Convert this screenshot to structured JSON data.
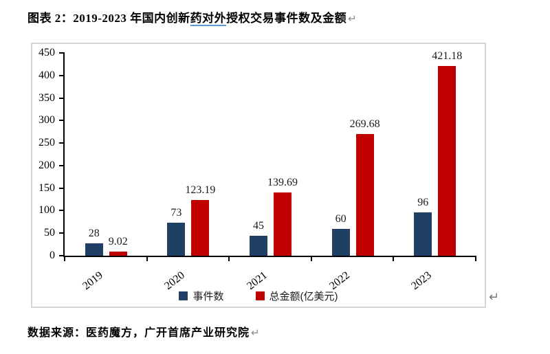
{
  "document": {
    "title": {
      "prefix": "图表 2：2019-2023 年国内创新",
      "underlined": "药对外",
      "suffix": "授权交易事件数及金额"
    },
    "source_note": "数据来源：医药魔方，广开首席产业研究院",
    "paragraph_mark": "↵"
  },
  "chart_data": {
    "type": "bar",
    "title": "2019-2023 年国内创新药对外授权交易事件数及金额",
    "categories": [
      "2019",
      "2020",
      "2021",
      "2022",
      "2023"
    ],
    "series": [
      {
        "name": "事件数",
        "color": "#1F3F64",
        "values": [
          28,
          73,
          45,
          60,
          96
        ],
        "labels": [
          "28",
          "73",
          "45",
          "60",
          "96"
        ]
      },
      {
        "name": "总金额(亿美元)",
        "color": "#C00000",
        "values": [
          9.02,
          123.19,
          139.69,
          269.68,
          421.18
        ],
        "labels": [
          "9.02",
          "123.19",
          "139.69",
          "269.68",
          "421.18"
        ]
      }
    ],
    "xlabel": "",
    "ylabel": "",
    "ylim": [
      0,
      450
    ],
    "ytick_step": 50,
    "grid": false,
    "legend_position": "bottom",
    "value_labels": true
  },
  "colors": {
    "series_events": "#1F3F64",
    "series_amount": "#C00000",
    "chart_border": "#d6d4d4",
    "axis": "#000000",
    "underline": "#5B9BD5",
    "paragraph_mark": "#8a8a8a"
  }
}
